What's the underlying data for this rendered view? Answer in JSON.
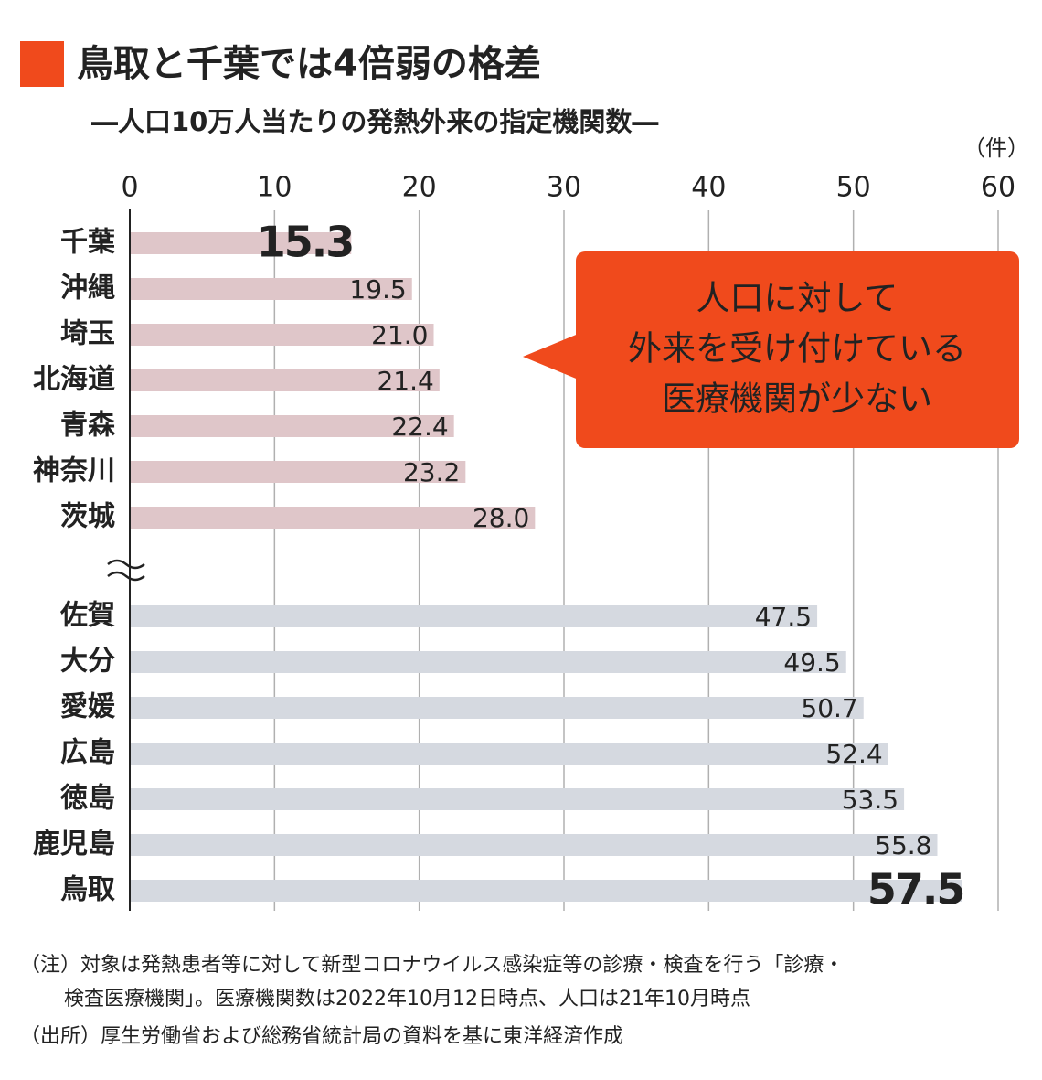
{
  "chart_data": {
    "type": "bar",
    "title": "鳥取と千葉では4倍弱の格差",
    "subtitle": "―人口10万人当たりの発熱外来の指定機関数―",
    "unit": "（件）",
    "xlim": [
      0,
      60
    ],
    "xticks": [
      0,
      10,
      20,
      30,
      40,
      50,
      60
    ],
    "grid": true,
    "groups": [
      {
        "categories": [
          "千葉",
          "沖縄",
          "埼玉",
          "北海道",
          "青森",
          "神奈川",
          "茨城"
        ],
        "values": [
          15.3,
          19.5,
          21.0,
          21.4,
          22.4,
          23.2,
          28.0
        ],
        "value_labels": [
          "15.3",
          "19.5",
          "21.0",
          "21.4",
          "22.4",
          "23.2",
          "28.0"
        ],
        "value_label_colors": [
          "#f04a1c",
          "#333333",
          "#333333",
          "#333333",
          "#333333",
          "#333333",
          "#333333"
        ],
        "color": "#dfc6c9"
      },
      {
        "categories": [
          "佐賀",
          "大分",
          "愛媛",
          "広島",
          "徳島",
          "鹿児島",
          "鳥取"
        ],
        "values": [
          47.5,
          49.5,
          50.7,
          52.4,
          53.5,
          55.8,
          57.5
        ],
        "value_labels": [
          "47.5",
          "49.5",
          "50.7",
          "52.4",
          "53.5",
          "55.8",
          "57.5"
        ],
        "value_label_colors": [
          "#333333",
          "#333333",
          "#333333",
          "#333333",
          "#333333",
          "#333333",
          "#4a64b4"
        ],
        "color": "#d5d9e0"
      }
    ],
    "annotation": [
      "人口に対して",
      "外来を受け付けている",
      "医療機関が少ない"
    ],
    "notes": [
      "（注）対象は発熱患者等に対して新型コロナウイルス感染症等の診療・検査を行う「診療・",
      "検査医療機関」。医療機関数は2022年10月12日時点、人口は21年10月時点",
      "（出所）厚生労働省および総務省統計局の資料を基に東洋経済作成"
    ]
  }
}
